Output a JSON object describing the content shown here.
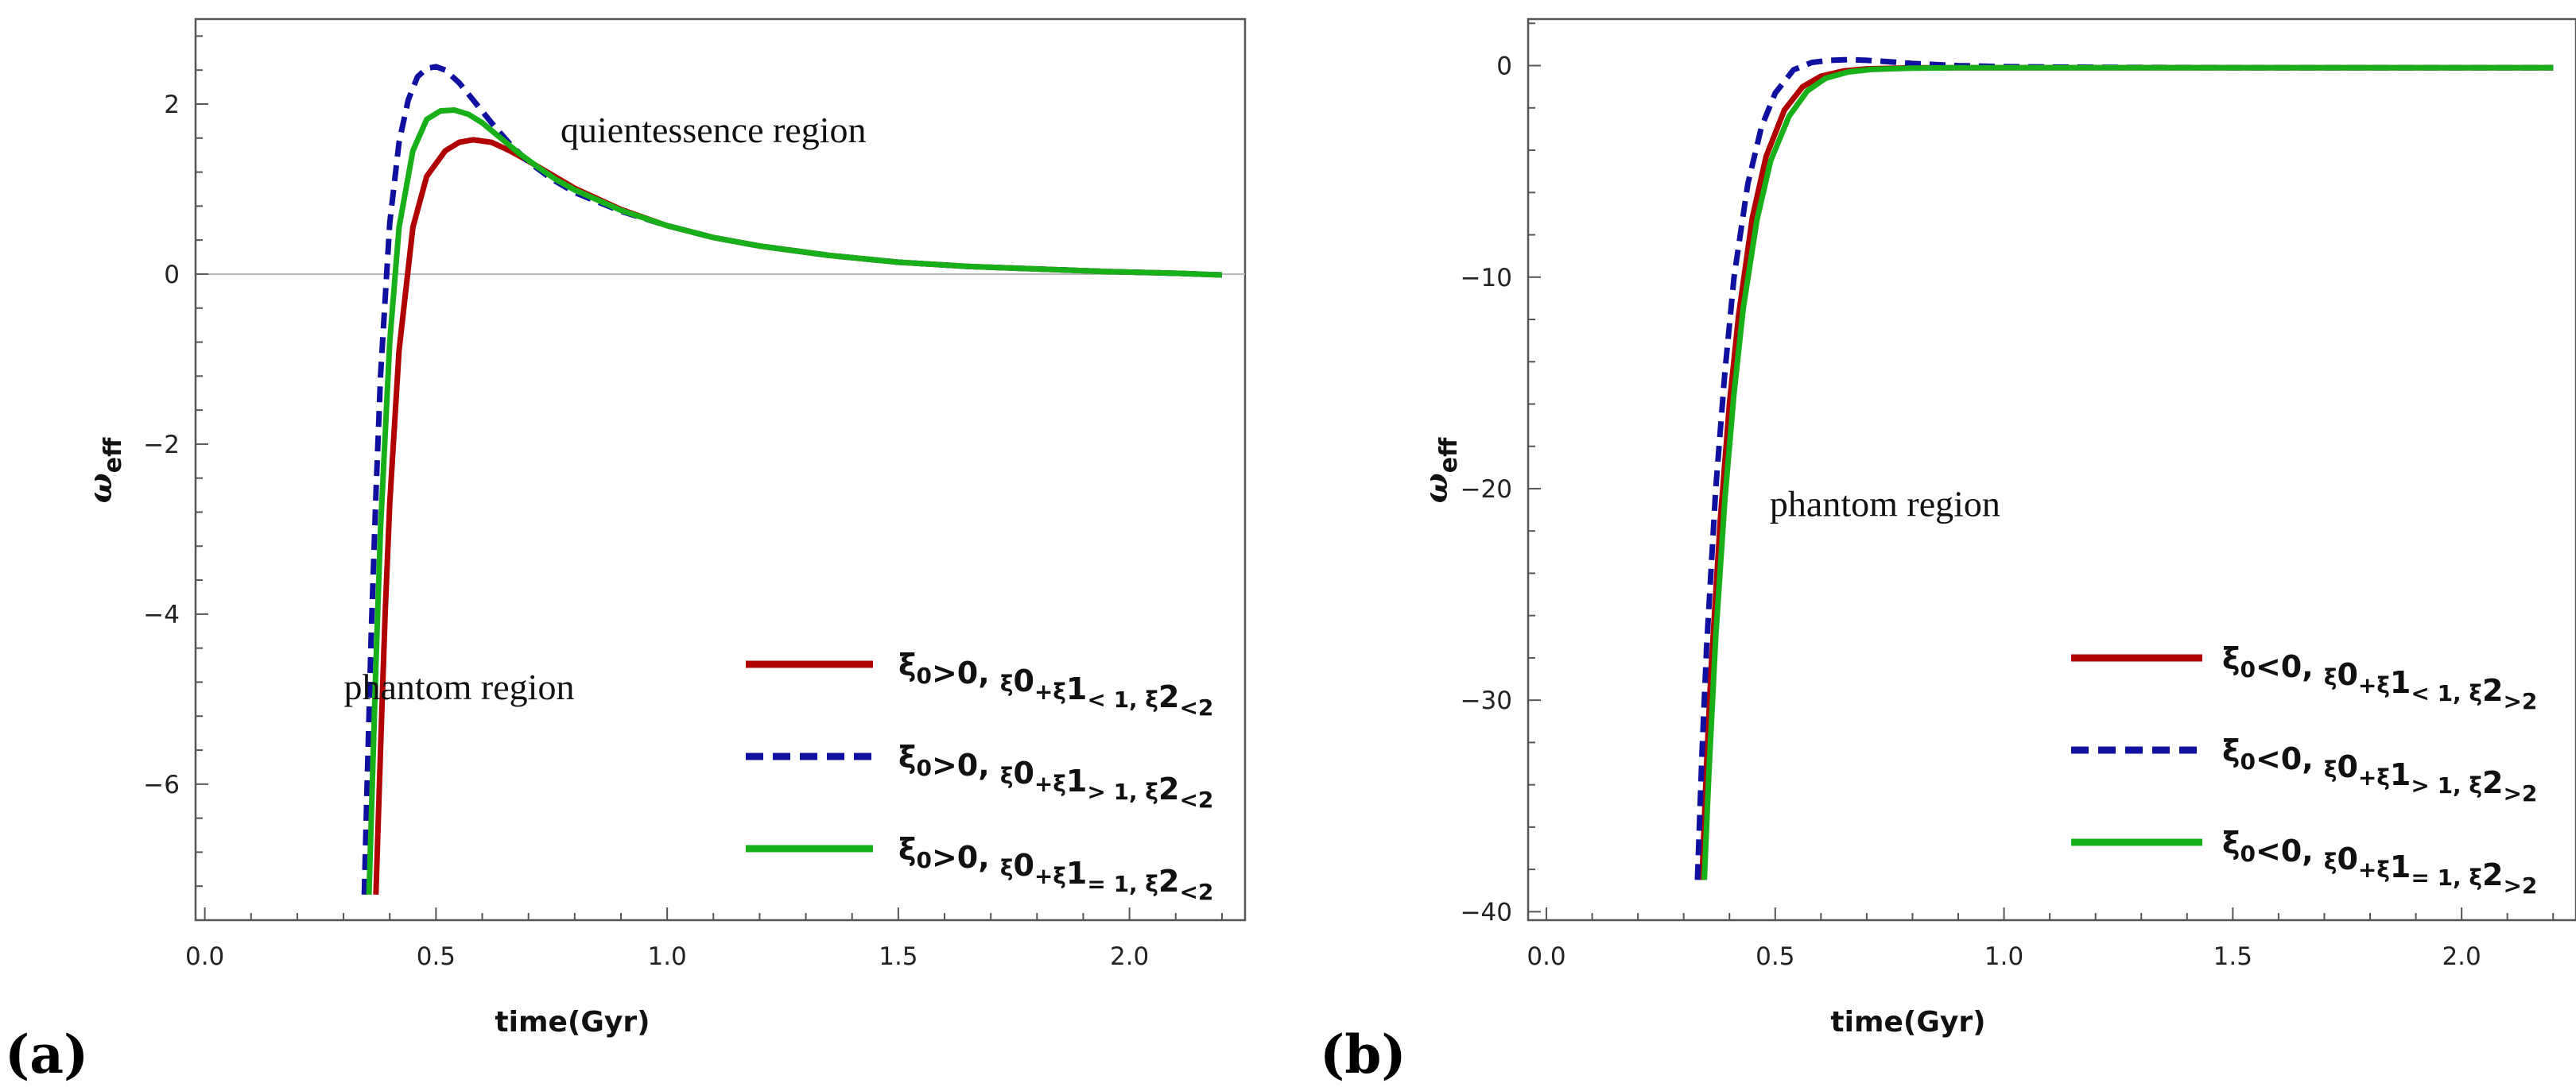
{
  "chart_data": [
    {
      "type": "line",
      "panel_label": "(a)",
      "xlabel": "time(Gyr)",
      "ylabel": "ω",
      "ylabel_sub": "eff",
      "xlim": [
        -0.02,
        2.25
      ],
      "ylim": [
        -7.6,
        3.0
      ],
      "xticks": [
        0.0,
        0.5,
        1.0,
        1.5,
        2.0
      ],
      "xtick_labels": [
        "0.0",
        "0.5",
        "1.0",
        "1.5",
        "2.0"
      ],
      "yticks": [
        2,
        0,
        -2,
        -4,
        -6
      ],
      "ytick_labels": [
        "2",
        "0",
        "−2",
        "−4",
        "−6"
      ],
      "zero_line": true,
      "grid": false,
      "legend_position": "bottom-right",
      "annotations": [
        {
          "text": "quientessence  region",
          "x": 1.1,
          "y": 1.55
        },
        {
          "text": "phantom  region",
          "x": 0.55,
          "y": -5.0
        }
      ],
      "series": [
        {
          "name": "ξ0>0, ξ0+ξ1< 1, ξ2<2",
          "label_parts": [
            [
              "ξ",
              "0"
            ],
            [
              ">0, ",
              "ξ"
            ],
            [
              "0",
              "+ξ"
            ],
            [
              "1",
              "< 1, ξ"
            ],
            [
              "2",
              "<2"
            ]
          ],
          "color": "#b00000",
          "style": "solid",
          "x": [
            0.37,
            0.38,
            0.39,
            0.4,
            0.42,
            0.45,
            0.48,
            0.52,
            0.55,
            0.58,
            0.62,
            0.66,
            0.7,
            0.75,
            0.8,
            0.9,
            1.0,
            1.1,
            1.2,
            1.35,
            1.5,
            1.65,
            1.8,
            1.95,
            2.1,
            2.2
          ],
          "y": [
            -7.3,
            -5.6,
            -4.0,
            -2.7,
            -0.9,
            0.55,
            1.15,
            1.45,
            1.55,
            1.58,
            1.55,
            1.45,
            1.33,
            1.17,
            1.01,
            0.76,
            0.57,
            0.43,
            0.33,
            0.22,
            0.14,
            0.09,
            0.06,
            0.03,
            0.01,
            -0.01
          ]
        },
        {
          "name": "ξ0>0, ξ0+ξ1> 1, ξ2<2",
          "label_parts": [
            [
              "ξ",
              "0"
            ],
            [
              ">0, ",
              "ξ"
            ],
            [
              "0",
              "+ξ"
            ],
            [
              "1",
              "> 1, ξ"
            ],
            [
              "2",
              "<2"
            ]
          ],
          "color": "#1010a0",
          "style": "dashed",
          "x": [
            0.345,
            0.35,
            0.36,
            0.37,
            0.38,
            0.4,
            0.42,
            0.44,
            0.46,
            0.48,
            0.5,
            0.52,
            0.55,
            0.58,
            0.62,
            0.66,
            0.7,
            0.75,
            0.8,
            0.9,
            1.0,
            1.1,
            1.2,
            1.35,
            1.5,
            1.65,
            1.8,
            1.95,
            2.1,
            2.2
          ],
          "y": [
            -7.3,
            -6.2,
            -4.2,
            -2.6,
            -1.2,
            0.6,
            1.55,
            2.05,
            2.32,
            2.42,
            2.44,
            2.4,
            2.25,
            2.05,
            1.78,
            1.53,
            1.32,
            1.12,
            0.96,
            0.74,
            0.57,
            0.43,
            0.33,
            0.22,
            0.14,
            0.09,
            0.06,
            0.03,
            0.01,
            -0.01
          ]
        },
        {
          "name": "ξ0>0, ξ0+ξ1= 1, ξ2<2",
          "label_parts": [
            [
              "ξ",
              "0"
            ],
            [
              ">0, ",
              "ξ"
            ],
            [
              "0",
              "+ξ"
            ],
            [
              "1",
              "= 1, ξ"
            ],
            [
              "2",
              "<2"
            ]
          ],
          "color": "#18b018",
          "style": "solid",
          "x": [
            0.355,
            0.36,
            0.37,
            0.38,
            0.4,
            0.42,
            0.45,
            0.48,
            0.51,
            0.54,
            0.57,
            0.6,
            0.64,
            0.68,
            0.72,
            0.76,
            0.8,
            0.9,
            1.0,
            1.1,
            1.2,
            1.35,
            1.5,
            1.65,
            1.8,
            1.95,
            2.1,
            2.2
          ],
          "y": [
            -7.3,
            -6.4,
            -4.6,
            -3.0,
            -0.8,
            0.55,
            1.45,
            1.82,
            1.92,
            1.93,
            1.88,
            1.78,
            1.6,
            1.42,
            1.26,
            1.11,
            0.99,
            0.75,
            0.57,
            0.43,
            0.33,
            0.22,
            0.14,
            0.09,
            0.06,
            0.03,
            0.01,
            -0.01
          ]
        }
      ]
    },
    {
      "type": "line",
      "panel_label": "(b)",
      "xlabel": "time(Gyr)",
      "ylabel": "ω",
      "ylabel_sub": "eff",
      "xlim": [
        -0.04,
        2.25
      ],
      "ylim": [
        -40.4,
        2.2
      ],
      "xticks": [
        0.0,
        0.5,
        1.0,
        1.5,
        2.0
      ],
      "xtick_labels": [
        "0.0",
        "0.5",
        "1.0",
        "1.5",
        "2.0"
      ],
      "yticks": [
        0,
        -10,
        -20,
        -30,
        -40
      ],
      "ytick_labels": [
        "0",
        "−10",
        "−20",
        "−30",
        "−40"
      ],
      "zero_line": false,
      "grid": false,
      "legend_position": "bottom-right",
      "annotations": [
        {
          "text": "phantom  region",
          "x": 0.74,
          "y": -21.3
        }
      ],
      "series": [
        {
          "name": "ξ0<0, ξ0+ξ1< 1, ξ2>2",
          "label_parts": [
            [
              "ξ",
              "0"
            ],
            [
              "<0, ",
              "ξ"
            ],
            [
              "0",
              "+ξ"
            ],
            [
              "1",
              "< 1, ξ"
            ],
            [
              "2",
              ">2"
            ]
          ],
          "color": "#b00000",
          "style": "solid",
          "x": [
            0.34,
            0.35,
            0.36,
            0.38,
            0.4,
            0.42,
            0.45,
            0.48,
            0.52,
            0.56,
            0.6,
            0.65,
            0.7,
            0.8,
            0.9,
            1.0,
            1.2,
            1.5,
            1.8,
            2.2
          ],
          "y": [
            -38.5,
            -33.0,
            -28.5,
            -21.5,
            -16.0,
            -11.8,
            -7.2,
            -4.3,
            -2.1,
            -1.0,
            -0.5,
            -0.25,
            -0.15,
            -0.1,
            -0.1,
            -0.1,
            -0.1,
            -0.1,
            -0.1,
            -0.1
          ]
        },
        {
          "name": "ξ0<0, ξ0+ξ1> 1, ξ2>2",
          "label_parts": [
            [
              "ξ",
              "0"
            ],
            [
              "<0, ",
              "ξ"
            ],
            [
              "0",
              "+ξ"
            ],
            [
              "1",
              "> 1, ξ"
            ],
            [
              "2",
              ">2"
            ]
          ],
          "color": "#1010a0",
          "style": "dashed",
          "x": [
            0.33,
            0.34,
            0.35,
            0.37,
            0.39,
            0.41,
            0.44,
            0.47,
            0.5,
            0.54,
            0.58,
            0.62,
            0.66,
            0.7,
            0.75,
            0.8,
            0.9,
            1.0,
            1.2,
            1.5,
            1.8,
            2.2
          ],
          "y": [
            -38.5,
            -32.5,
            -27.5,
            -20.0,
            -14.5,
            -10.0,
            -5.6,
            -2.9,
            -1.3,
            -0.2,
            0.15,
            0.25,
            0.28,
            0.25,
            0.18,
            0.1,
            0.0,
            -0.05,
            -0.08,
            -0.1,
            -0.1,
            -0.1
          ]
        },
        {
          "name": "ξ0<0, ξ0+ξ1= 1, ξ2>2",
          "label_parts": [
            [
              "ξ",
              "0"
            ],
            [
              "<0, ",
              "ξ"
            ],
            [
              "0",
              "+ξ"
            ],
            [
              "1",
              "= 1, ξ"
            ],
            [
              "2",
              ">2"
            ]
          ],
          "color": "#18b018",
          "style": "solid",
          "x": [
            0.345,
            0.355,
            0.37,
            0.39,
            0.41,
            0.43,
            0.46,
            0.49,
            0.53,
            0.57,
            0.61,
            0.66,
            0.71,
            0.8,
            0.9,
            1.0,
            1.2,
            1.5,
            1.8,
            2.2
          ],
          "y": [
            -38.5,
            -33.5,
            -27.0,
            -20.5,
            -15.5,
            -11.5,
            -7.3,
            -4.5,
            -2.4,
            -1.2,
            -0.6,
            -0.3,
            -0.18,
            -0.12,
            -0.1,
            -0.1,
            -0.1,
            -0.1,
            -0.1,
            -0.1
          ]
        }
      ]
    }
  ]
}
